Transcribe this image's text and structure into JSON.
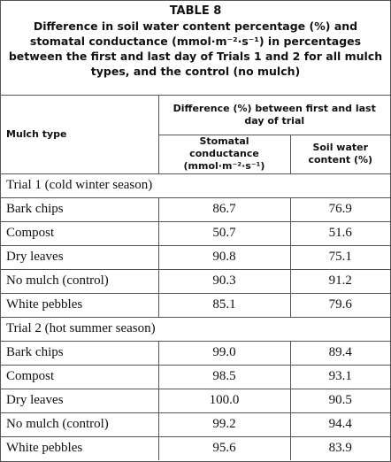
{
  "title": "TABLE 8",
  "caption": "Difference in soil water content percentage (%) and stomatal conductance (mmol·m⁻²·s⁻¹) in percentages between the first and last day of Trials 1 and 2 for all mulch types, and the control (no mulch)",
  "table": {
    "headers": {
      "mulch_type": "Mulch type",
      "group": "Difference (%) between first and last day of trial",
      "stomatal": "Stomatal conductance (mmol·m⁻²·s⁻¹)",
      "soil": "Soil water content (%)"
    },
    "sections": [
      {
        "label": "Trial 1 (cold winter season)",
        "rows": [
          [
            "Bark chips",
            "86.7",
            "76.9"
          ],
          [
            "Compost",
            "50.7",
            "51.6"
          ],
          [
            "Dry leaves",
            "90.8",
            "75.1"
          ],
          [
            "No mulch (control)",
            "90.3",
            "91.2"
          ],
          [
            "White pebbles",
            "85.1",
            "79.6"
          ]
        ]
      },
      {
        "label": "Trial 2 (hot summer season)",
        "rows": [
          [
            "Bark chips",
            "99.0",
            "89.4"
          ],
          [
            "Compost",
            "98.5",
            "93.1"
          ],
          [
            "Dry leaves",
            "100.0",
            "90.5"
          ],
          [
            "No mulch (control)",
            "99.2",
            "94.4"
          ],
          [
            "White pebbles",
            "95.6",
            "83.9"
          ]
        ]
      }
    ]
  }
}
